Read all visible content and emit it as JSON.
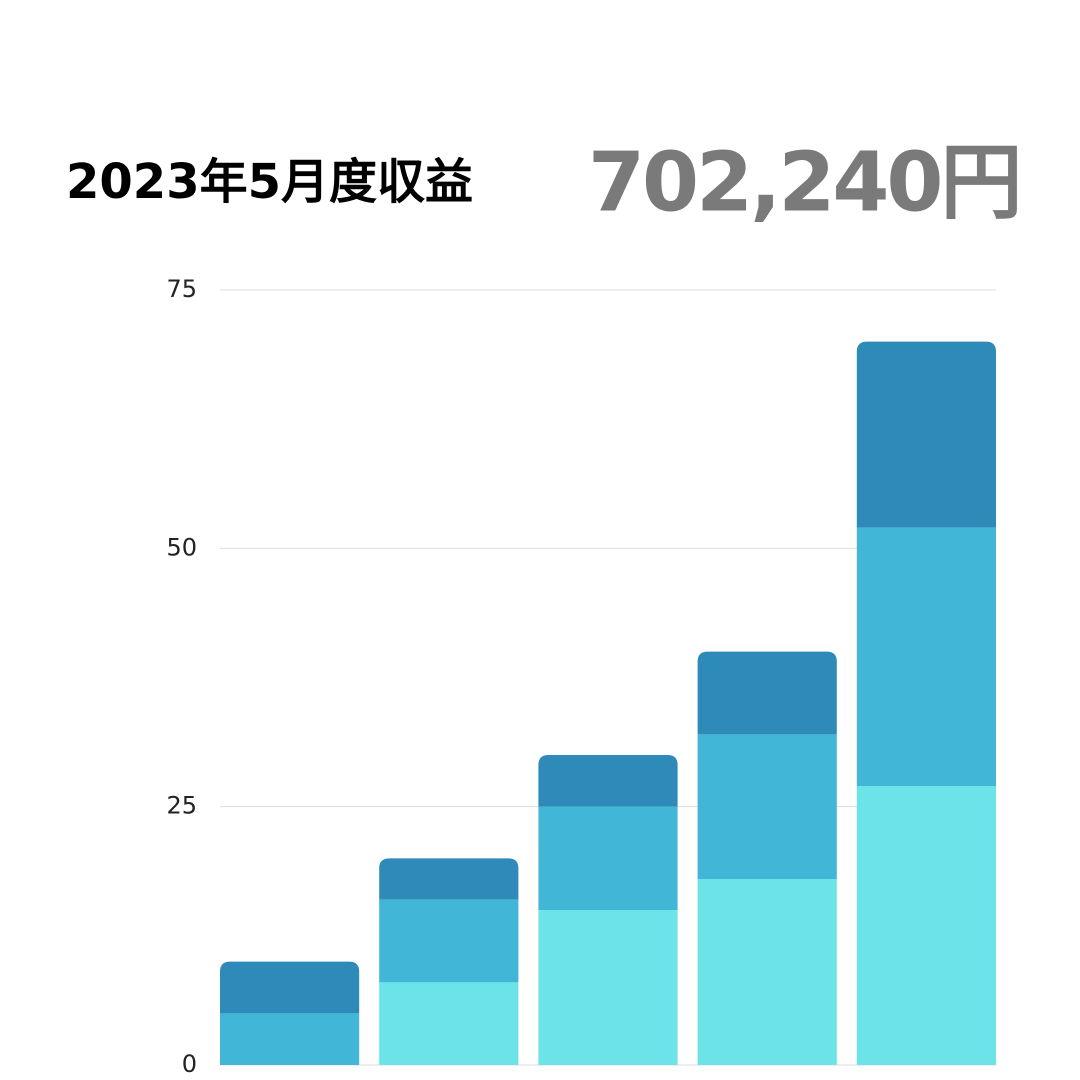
{
  "chart_data": {
    "type": "stacked-bar",
    "title": "2023年5月度収益",
    "annotation": "702,240円",
    "categories": [
      null,
      null,
      null,
      null,
      null
    ],
    "series": [
      {
        "color": "#6ce3e8",
        "values": [
          0,
          8,
          15,
          18,
          27
        ]
      },
      {
        "color": "#42b6d6",
        "values": [
          5,
          8,
          10,
          14,
          25
        ]
      },
      {
        "color": "#2e8ab8",
        "values": [
          5,
          4,
          5,
          8,
          18
        ]
      }
    ],
    "ylim": [
      0,
      75
    ],
    "yticks": [
      0,
      25,
      50,
      75
    ],
    "grid": true
  }
}
